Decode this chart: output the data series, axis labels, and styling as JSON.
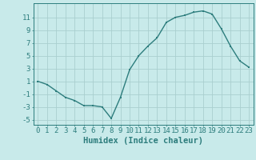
{
  "x": [
    0,
    1,
    2,
    3,
    4,
    5,
    6,
    7,
    8,
    9,
    10,
    11,
    12,
    13,
    14,
    15,
    16,
    17,
    18,
    19,
    20,
    21,
    22,
    23
  ],
  "y": [
    1,
    0.5,
    -0.5,
    -1.5,
    -2,
    -2.8,
    -2.8,
    -3,
    -4.8,
    -1.5,
    2.8,
    5,
    6.5,
    7.8,
    10.2,
    11,
    11.3,
    11.8,
    12,
    11.5,
    9.2,
    6.5,
    4.2,
    3.2
  ],
  "line_color": "#2d7d7d",
  "marker_color": "#2d7d7d",
  "bg_color": "#c8eaea",
  "grid_color": "#aacfcf",
  "axis_color": "#2d7d7d",
  "xlabel": "Humidex (Indice chaleur)",
  "yticks": [
    -5,
    -3,
    -1,
    1,
    3,
    5,
    7,
    9,
    11
  ],
  "xticks": [
    0,
    1,
    2,
    3,
    4,
    5,
    6,
    7,
    8,
    9,
    10,
    11,
    12,
    13,
    14,
    15,
    16,
    17,
    18,
    19,
    20,
    21,
    22,
    23
  ],
  "ylim": [
    -5.8,
    13.2
  ],
  "xlim": [
    -0.5,
    23.5
  ],
  "xlabel_fontsize": 7.5,
  "tick_fontsize": 6.5
}
